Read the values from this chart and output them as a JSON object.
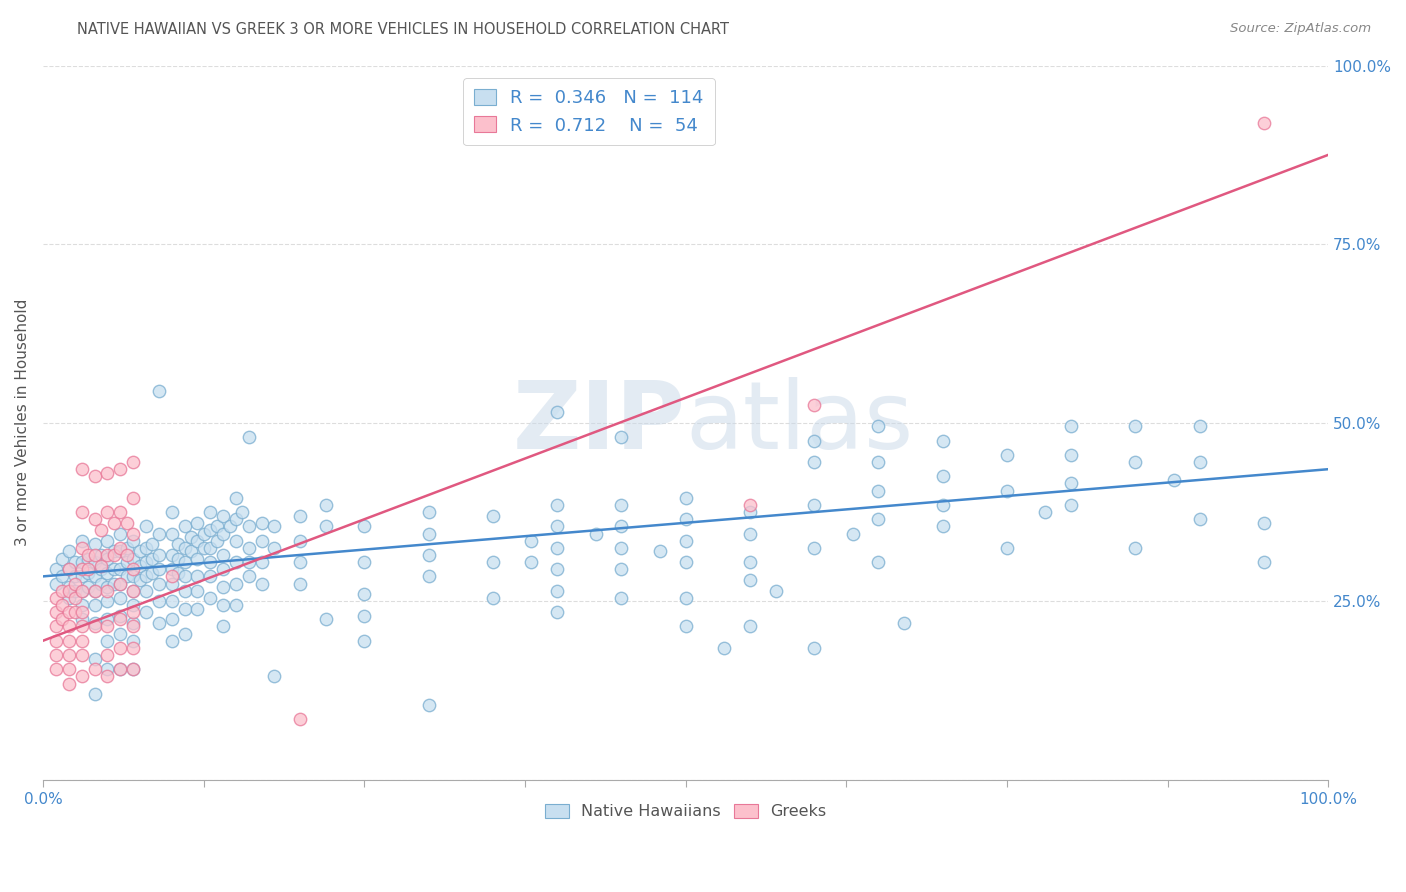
{
  "title": "NATIVE HAWAIIAN VS GREEK 3 OR MORE VEHICLES IN HOUSEHOLD CORRELATION CHART",
  "source": "Source: ZipAtlas.com",
  "ylabel": "3 or more Vehicles in Household",
  "xlim": [
    0.0,
    1.0
  ],
  "ylim": [
    0.0,
    1.0
  ],
  "yticks": [
    0.0,
    0.25,
    0.5,
    0.75,
    1.0
  ],
  "ytick_labels_right": [
    "",
    "25.0%",
    "50.0%",
    "75.0%",
    "100.0%"
  ],
  "xtick_positions": [
    0.0,
    0.125,
    0.25,
    0.375,
    0.5,
    0.625,
    0.75,
    0.875,
    1.0
  ],
  "legend_r_blue": "0.346",
  "legend_n_blue": "114",
  "legend_r_pink": "0.712",
  "legend_n_pink": "54",
  "legend_label_blue": "Native Hawaiians",
  "legend_label_pink": "Greeks",
  "blue_color": "#a8c8e8",
  "pink_color": "#f4a0b5",
  "blue_face_color": "#c8dff0",
  "pink_face_color": "#fcc0cc",
  "blue_edge_color": "#7aaed0",
  "pink_edge_color": "#e87898",
  "blue_line_color": "#4488cc",
  "pink_line_color": "#e05880",
  "text_color": "#4488cc",
  "title_color": "#555555",
  "source_color": "#888888",
  "background_color": "#ffffff",
  "grid_color": "#dddddd",
  "watermark_color": "#d0dde8",
  "blue_scatter": [
    [
      0.01,
      0.295
    ],
    [
      0.01,
      0.275
    ],
    [
      0.015,
      0.31
    ],
    [
      0.015,
      0.285
    ],
    [
      0.02,
      0.32
    ],
    [
      0.02,
      0.295
    ],
    [
      0.02,
      0.27
    ],
    [
      0.02,
      0.255
    ],
    [
      0.025,
      0.305
    ],
    [
      0.025,
      0.285
    ],
    [
      0.025,
      0.265
    ],
    [
      0.03,
      0.335
    ],
    [
      0.03,
      0.305
    ],
    [
      0.03,
      0.285
    ],
    [
      0.03,
      0.265
    ],
    [
      0.03,
      0.245
    ],
    [
      0.03,
      0.225
    ],
    [
      0.035,
      0.31
    ],
    [
      0.035,
      0.29
    ],
    [
      0.035,
      0.27
    ],
    [
      0.04,
      0.33
    ],
    [
      0.04,
      0.305
    ],
    [
      0.04,
      0.285
    ],
    [
      0.04,
      0.265
    ],
    [
      0.04,
      0.245
    ],
    [
      0.04,
      0.22
    ],
    [
      0.04,
      0.17
    ],
    [
      0.04,
      0.12
    ],
    [
      0.045,
      0.315
    ],
    [
      0.045,
      0.295
    ],
    [
      0.045,
      0.275
    ],
    [
      0.05,
      0.335
    ],
    [
      0.05,
      0.31
    ],
    [
      0.05,
      0.29
    ],
    [
      0.05,
      0.27
    ],
    [
      0.05,
      0.25
    ],
    [
      0.05,
      0.225
    ],
    [
      0.05,
      0.195
    ],
    [
      0.05,
      0.155
    ],
    [
      0.055,
      0.32
    ],
    [
      0.055,
      0.295
    ],
    [
      0.055,
      0.275
    ],
    [
      0.06,
      0.345
    ],
    [
      0.06,
      0.32
    ],
    [
      0.06,
      0.295
    ],
    [
      0.06,
      0.275
    ],
    [
      0.06,
      0.255
    ],
    [
      0.06,
      0.23
    ],
    [
      0.06,
      0.205
    ],
    [
      0.06,
      0.155
    ],
    [
      0.065,
      0.325
    ],
    [
      0.065,
      0.305
    ],
    [
      0.065,
      0.285
    ],
    [
      0.07,
      0.335
    ],
    [
      0.07,
      0.31
    ],
    [
      0.07,
      0.285
    ],
    [
      0.07,
      0.265
    ],
    [
      0.07,
      0.245
    ],
    [
      0.07,
      0.22
    ],
    [
      0.07,
      0.195
    ],
    [
      0.07,
      0.155
    ],
    [
      0.075,
      0.32
    ],
    [
      0.075,
      0.3
    ],
    [
      0.075,
      0.28
    ],
    [
      0.08,
      0.355
    ],
    [
      0.08,
      0.325
    ],
    [
      0.08,
      0.305
    ],
    [
      0.08,
      0.285
    ],
    [
      0.08,
      0.265
    ],
    [
      0.08,
      0.235
    ],
    [
      0.085,
      0.33
    ],
    [
      0.085,
      0.31
    ],
    [
      0.085,
      0.29
    ],
    [
      0.09,
      0.545
    ],
    [
      0.09,
      0.345
    ],
    [
      0.09,
      0.315
    ],
    [
      0.09,
      0.295
    ],
    [
      0.09,
      0.275
    ],
    [
      0.09,
      0.25
    ],
    [
      0.09,
      0.22
    ],
    [
      0.1,
      0.375
    ],
    [
      0.1,
      0.345
    ],
    [
      0.1,
      0.315
    ],
    [
      0.1,
      0.295
    ],
    [
      0.1,
      0.275
    ],
    [
      0.1,
      0.25
    ],
    [
      0.1,
      0.225
    ],
    [
      0.1,
      0.195
    ],
    [
      0.105,
      0.33
    ],
    [
      0.105,
      0.31
    ],
    [
      0.105,
      0.29
    ],
    [
      0.11,
      0.355
    ],
    [
      0.11,
      0.325
    ],
    [
      0.11,
      0.305
    ],
    [
      0.11,
      0.285
    ],
    [
      0.11,
      0.265
    ],
    [
      0.11,
      0.24
    ],
    [
      0.11,
      0.205
    ],
    [
      0.115,
      0.34
    ],
    [
      0.115,
      0.32
    ],
    [
      0.12,
      0.36
    ],
    [
      0.12,
      0.335
    ],
    [
      0.12,
      0.31
    ],
    [
      0.12,
      0.285
    ],
    [
      0.12,
      0.265
    ],
    [
      0.12,
      0.24
    ],
    [
      0.125,
      0.345
    ],
    [
      0.125,
      0.325
    ],
    [
      0.13,
      0.375
    ],
    [
      0.13,
      0.35
    ],
    [
      0.13,
      0.325
    ],
    [
      0.13,
      0.305
    ],
    [
      0.13,
      0.285
    ],
    [
      0.13,
      0.255
    ],
    [
      0.135,
      0.355
    ],
    [
      0.135,
      0.335
    ],
    [
      0.14,
      0.37
    ],
    [
      0.14,
      0.345
    ],
    [
      0.14,
      0.315
    ],
    [
      0.14,
      0.295
    ],
    [
      0.14,
      0.27
    ],
    [
      0.14,
      0.245
    ],
    [
      0.14,
      0.215
    ],
    [
      0.145,
      0.355
    ],
    [
      0.15,
      0.395
    ],
    [
      0.15,
      0.365
    ],
    [
      0.15,
      0.335
    ],
    [
      0.15,
      0.305
    ],
    [
      0.15,
      0.275
    ],
    [
      0.15,
      0.245
    ],
    [
      0.155,
      0.375
    ],
    [
      0.16,
      0.48
    ],
    [
      0.16,
      0.355
    ],
    [
      0.16,
      0.325
    ],
    [
      0.16,
      0.305
    ],
    [
      0.16,
      0.285
    ],
    [
      0.17,
      0.36
    ],
    [
      0.17,
      0.335
    ],
    [
      0.17,
      0.305
    ],
    [
      0.17,
      0.275
    ],
    [
      0.18,
      0.355
    ],
    [
      0.18,
      0.325
    ],
    [
      0.18,
      0.145
    ],
    [
      0.2,
      0.37
    ],
    [
      0.2,
      0.335
    ],
    [
      0.2,
      0.305
    ],
    [
      0.2,
      0.275
    ],
    [
      0.22,
      0.385
    ],
    [
      0.22,
      0.355
    ],
    [
      0.22,
      0.225
    ],
    [
      0.25,
      0.355
    ],
    [
      0.25,
      0.305
    ],
    [
      0.25,
      0.26
    ],
    [
      0.25,
      0.23
    ],
    [
      0.25,
      0.195
    ],
    [
      0.3,
      0.375
    ],
    [
      0.3,
      0.345
    ],
    [
      0.3,
      0.315
    ],
    [
      0.3,
      0.285
    ],
    [
      0.3,
      0.105
    ],
    [
      0.35,
      0.37
    ],
    [
      0.35,
      0.305
    ],
    [
      0.35,
      0.255
    ],
    [
      0.38,
      0.335
    ],
    [
      0.38,
      0.305
    ],
    [
      0.4,
      0.515
    ],
    [
      0.4,
      0.385
    ],
    [
      0.4,
      0.355
    ],
    [
      0.4,
      0.325
    ],
    [
      0.4,
      0.295
    ],
    [
      0.4,
      0.265
    ],
    [
      0.4,
      0.235
    ],
    [
      0.43,
      0.345
    ],
    [
      0.45,
      0.48
    ],
    [
      0.45,
      0.385
    ],
    [
      0.45,
      0.355
    ],
    [
      0.45,
      0.325
    ],
    [
      0.45,
      0.295
    ],
    [
      0.45,
      0.255
    ],
    [
      0.48,
      0.32
    ],
    [
      0.5,
      0.395
    ],
    [
      0.5,
      0.365
    ],
    [
      0.5,
      0.335
    ],
    [
      0.5,
      0.305
    ],
    [
      0.5,
      0.255
    ],
    [
      0.5,
      0.215
    ],
    [
      0.53,
      0.185
    ],
    [
      0.55,
      0.375
    ],
    [
      0.55,
      0.345
    ],
    [
      0.55,
      0.305
    ],
    [
      0.55,
      0.28
    ],
    [
      0.55,
      0.215
    ],
    [
      0.57,
      0.265
    ],
    [
      0.6,
      0.475
    ],
    [
      0.6,
      0.445
    ],
    [
      0.6,
      0.385
    ],
    [
      0.6,
      0.325
    ],
    [
      0.6,
      0.185
    ],
    [
      0.63,
      0.345
    ],
    [
      0.65,
      0.495
    ],
    [
      0.65,
      0.445
    ],
    [
      0.65,
      0.405
    ],
    [
      0.65,
      0.365
    ],
    [
      0.65,
      0.305
    ],
    [
      0.67,
      0.22
    ],
    [
      0.7,
      0.475
    ],
    [
      0.7,
      0.425
    ],
    [
      0.7,
      0.385
    ],
    [
      0.7,
      0.355
    ],
    [
      0.75,
      0.455
    ],
    [
      0.75,
      0.405
    ],
    [
      0.75,
      0.325
    ],
    [
      0.78,
      0.375
    ],
    [
      0.8,
      0.495
    ],
    [
      0.8,
      0.455
    ],
    [
      0.8,
      0.415
    ],
    [
      0.8,
      0.385
    ],
    [
      0.85,
      0.495
    ],
    [
      0.85,
      0.445
    ],
    [
      0.85,
      0.325
    ],
    [
      0.88,
      0.42
    ],
    [
      0.9,
      0.495
    ],
    [
      0.9,
      0.445
    ],
    [
      0.9,
      0.365
    ],
    [
      0.95,
      0.36
    ],
    [
      0.95,
      0.305
    ]
  ],
  "pink_scatter": [
    [
      0.01,
      0.255
    ],
    [
      0.01,
      0.235
    ],
    [
      0.01,
      0.215
    ],
    [
      0.01,
      0.195
    ],
    [
      0.01,
      0.175
    ],
    [
      0.01,
      0.155
    ],
    [
      0.015,
      0.265
    ],
    [
      0.015,
      0.245
    ],
    [
      0.015,
      0.225
    ],
    [
      0.02,
      0.295
    ],
    [
      0.02,
      0.265
    ],
    [
      0.02,
      0.235
    ],
    [
      0.02,
      0.215
    ],
    [
      0.02,
      0.195
    ],
    [
      0.02,
      0.175
    ],
    [
      0.02,
      0.155
    ],
    [
      0.02,
      0.135
    ],
    [
      0.025,
      0.275
    ],
    [
      0.025,
      0.255
    ],
    [
      0.025,
      0.235
    ],
    [
      0.03,
      0.435
    ],
    [
      0.03,
      0.375
    ],
    [
      0.03,
      0.325
    ],
    [
      0.03,
      0.295
    ],
    [
      0.03,
      0.265
    ],
    [
      0.03,
      0.235
    ],
    [
      0.03,
      0.215
    ],
    [
      0.03,
      0.195
    ],
    [
      0.03,
      0.175
    ],
    [
      0.03,
      0.145
    ],
    [
      0.035,
      0.315
    ],
    [
      0.035,
      0.295
    ],
    [
      0.04,
      0.425
    ],
    [
      0.04,
      0.365
    ],
    [
      0.04,
      0.315
    ],
    [
      0.04,
      0.265
    ],
    [
      0.04,
      0.215
    ],
    [
      0.04,
      0.155
    ],
    [
      0.045,
      0.35
    ],
    [
      0.045,
      0.3
    ],
    [
      0.05,
      0.43
    ],
    [
      0.05,
      0.375
    ],
    [
      0.05,
      0.315
    ],
    [
      0.05,
      0.265
    ],
    [
      0.05,
      0.215
    ],
    [
      0.05,
      0.175
    ],
    [
      0.05,
      0.145
    ],
    [
      0.055,
      0.36
    ],
    [
      0.055,
      0.315
    ],
    [
      0.06,
      0.435
    ],
    [
      0.06,
      0.375
    ],
    [
      0.06,
      0.325
    ],
    [
      0.06,
      0.275
    ],
    [
      0.06,
      0.225
    ],
    [
      0.06,
      0.185
    ],
    [
      0.06,
      0.155
    ],
    [
      0.065,
      0.36
    ],
    [
      0.065,
      0.315
    ],
    [
      0.07,
      0.445
    ],
    [
      0.07,
      0.395
    ],
    [
      0.07,
      0.345
    ],
    [
      0.07,
      0.295
    ],
    [
      0.07,
      0.265
    ],
    [
      0.07,
      0.235
    ],
    [
      0.07,
      0.215
    ],
    [
      0.07,
      0.185
    ],
    [
      0.07,
      0.155
    ],
    [
      0.1,
      0.285
    ],
    [
      0.2,
      0.085
    ],
    [
      0.55,
      0.385
    ],
    [
      0.6,
      0.525
    ],
    [
      0.95,
      0.92
    ]
  ],
  "blue_line": {
    "x0": 0.0,
    "y0": 0.285,
    "x1": 1.0,
    "y1": 0.435
  },
  "pink_line": {
    "x0": 0.0,
    "y0": 0.195,
    "x1": 1.0,
    "y1": 0.875
  }
}
